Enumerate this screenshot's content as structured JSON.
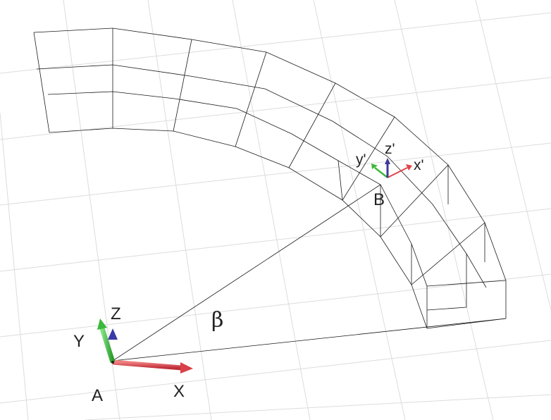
{
  "labels": {
    "origin_point": "A",
    "target_point": "B",
    "angle": "β"
  },
  "global_axes": {
    "x": "X",
    "y": "Y",
    "z": "Z"
  },
  "local_axes": {
    "x": "x'",
    "y": "y'",
    "z": "z'"
  },
  "colors": {
    "x_axis": "#e0444a",
    "y_axis": "#3cb83c",
    "z_axis": "#3a3a9a",
    "wireframe": "#1a1a1a",
    "grid": "#dcdcdc",
    "background": "#ffffff"
  }
}
